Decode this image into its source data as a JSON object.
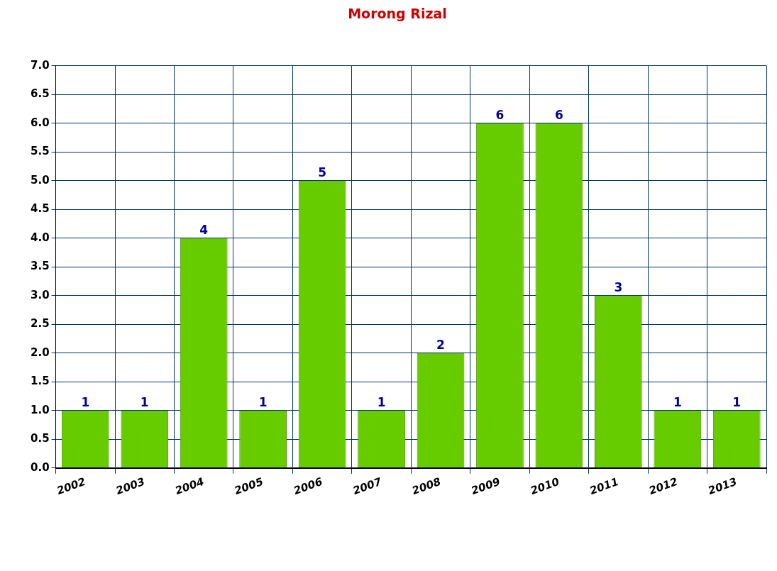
{
  "chart_data": {
    "type": "bar",
    "title": "Morong Rizal",
    "categories": [
      "2002",
      "2003",
      "2004",
      "2005",
      "2006",
      "2007",
      "2008",
      "2009",
      "2010",
      "2011",
      "2012",
      "2013"
    ],
    "values": [
      1,
      1,
      4,
      1,
      5,
      1,
      2,
      6,
      6,
      3,
      1,
      1
    ],
    "color": "#66cc00",
    "ylim": [
      0,
      7
    ],
    "yticks": [
      {
        "value": 0,
        "label": "0.0"
      },
      {
        "value": 0.5,
        "label": "0.5"
      },
      {
        "value": 1,
        "label": "1.0"
      },
      {
        "value": 1.5,
        "label": "1.5"
      },
      {
        "value": 2,
        "label": "2.0"
      },
      {
        "value": 2.5,
        "label": "2.5"
      },
      {
        "value": 3,
        "label": "3.0"
      },
      {
        "value": 3.5,
        "label": "3.5"
      },
      {
        "value": 4,
        "label": "4.0"
      },
      {
        "value": 4.5,
        "label": "4.5"
      },
      {
        "value": 5,
        "label": "5.0"
      },
      {
        "value": 5.5,
        "label": "5.5"
      },
      {
        "value": 6,
        "label": "6.0"
      },
      {
        "value": 6.5,
        "label": "6.5"
      },
      {
        "value": 7,
        "label": "7.0"
      }
    ],
    "grid": true,
    "data_labels": true
  }
}
